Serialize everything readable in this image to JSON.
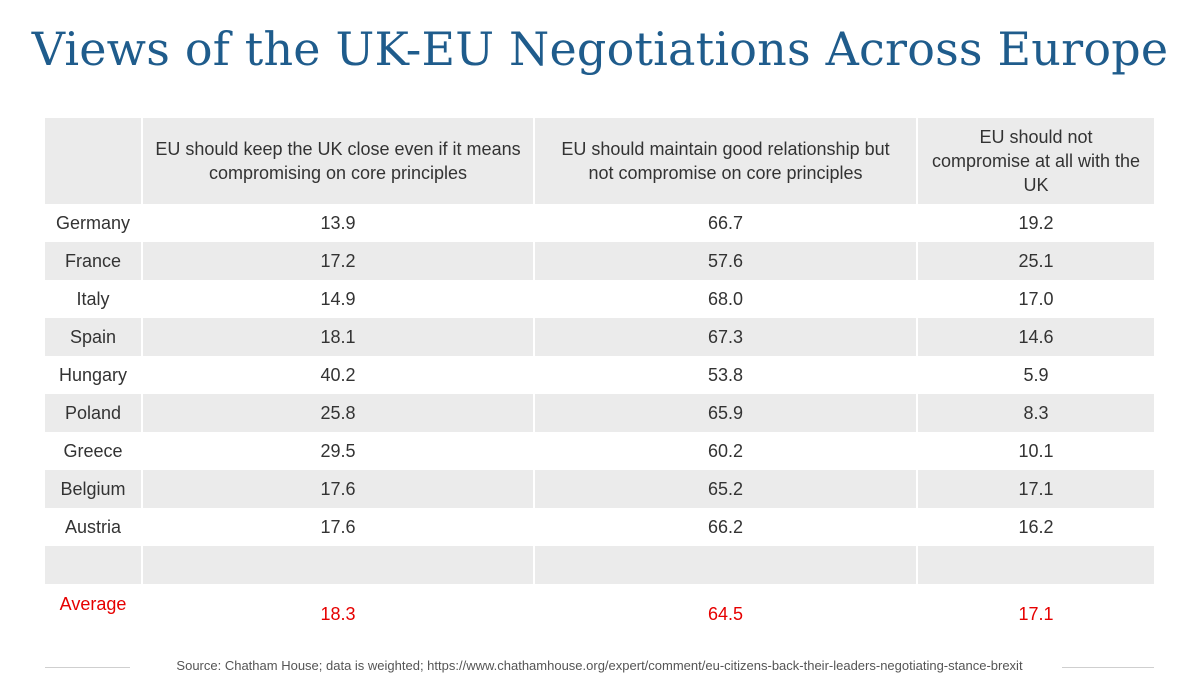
{
  "title": "Views of the UK-EU Negotiations Across Europe",
  "chart_data": {
    "type": "table",
    "columns": [
      "",
      "EU should keep the UK close even if it means compromising on core principles",
      "EU should maintain good relationship but not compromise on core principles",
      "EU should not compromise at all with the UK"
    ],
    "rows": [
      [
        "Germany",
        "13.9",
        "66.7",
        "19.2"
      ],
      [
        "France",
        "17.2",
        "57.6",
        "25.1"
      ],
      [
        "Italy",
        "14.9",
        "68.0",
        "17.0"
      ],
      [
        "Spain",
        "18.1",
        "67.3",
        "14.6"
      ],
      [
        "Hungary",
        "40.2",
        "53.8",
        "5.9"
      ],
      [
        "Poland",
        "25.8",
        "65.9",
        "8.3"
      ],
      [
        "Greece",
        "29.5",
        "60.2",
        "10.1"
      ],
      [
        "Belgium",
        "17.6",
        "65.2",
        "17.1"
      ],
      [
        "Austria",
        "17.6",
        "66.2",
        "16.2"
      ],
      [
        "",
        "",
        "",
        ""
      ]
    ],
    "average": [
      "Average",
      "18.3",
      "64.5",
      "17.1"
    ],
    "average_color": "#e60000",
    "title_color": "#1f5c8c",
    "shade_color": "#ebebeb"
  },
  "source": "Source: Chatham House; data is weighted; https://www.chathamhouse.org/expert/comment/eu-citizens-back-their-leaders-negotiating-stance-brexit"
}
